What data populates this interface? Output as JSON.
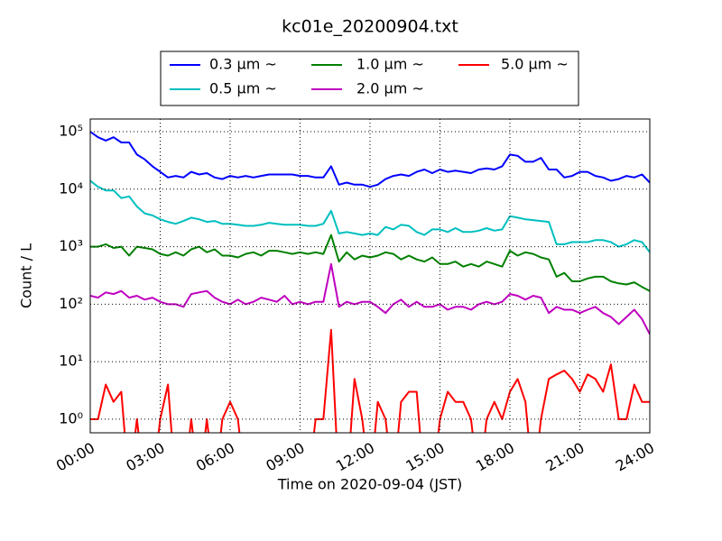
{
  "chart_data": {
    "type": "line",
    "title": "kc01e_20200904.txt",
    "x_label": "Time on 2020-09-04 (JST)",
    "y_label": "Count / L",
    "log_y": true,
    "grid": true,
    "legend": "top",
    "x": [
      "00:00",
      "00:20",
      "00:40",
      "01:00",
      "01:20",
      "01:40",
      "02:00",
      "02:20",
      "02:40",
      "03:00",
      "03:20",
      "03:40",
      "04:00",
      "04:20",
      "04:40",
      "05:00",
      "05:20",
      "05:40",
      "06:00",
      "06:20",
      "06:40",
      "07:00",
      "07:20",
      "07:40",
      "08:00",
      "08:20",
      "08:40",
      "09:00",
      "09:20",
      "09:40",
      "10:00",
      "10:20",
      "10:40",
      "11:00",
      "11:20",
      "11:40",
      "12:00",
      "12:20",
      "12:40",
      "13:00",
      "13:20",
      "13:40",
      "14:00",
      "14:20",
      "14:40",
      "15:00",
      "15:20",
      "15:40",
      "16:00",
      "16:20",
      "16:40",
      "17:00",
      "17:20",
      "17:40",
      "18:00",
      "18:20",
      "18:40",
      "19:00",
      "19:20",
      "19:40",
      "20:00",
      "20:20",
      "20:40",
      "21:00",
      "21:20",
      "21:40",
      "22:00",
      "22:20",
      "22:40",
      "23:00",
      "23:20",
      "23:40",
      "24:00"
    ],
    "xlim": [
      "00:00",
      "24:00"
    ],
    "xticks": [
      "00:00",
      "03:00",
      "06:00",
      "09:00",
      "12:00",
      "15:00",
      "18:00",
      "21:00",
      "24:00"
    ],
    "ylim": [
      0.58,
      166000
    ],
    "yticks": [
      {
        "value": 1,
        "label": "10⁰"
      },
      {
        "value": 10,
        "label": "10¹"
      },
      {
        "value": 100,
        "label": "10²"
      },
      {
        "value": 1000,
        "label": "10³"
      },
      {
        "value": 10000,
        "label": "10⁴"
      },
      {
        "value": 100000,
        "label": "10⁵"
      }
    ],
    "series": [
      {
        "name": "0.3 μm ~",
        "color": "#0000ff",
        "values": [
          100000,
          80000,
          70000,
          80000,
          65000,
          65000,
          40000,
          33000,
          25000,
          20000,
          16000,
          17000,
          16000,
          20000,
          18000,
          19000,
          16000,
          15000,
          17000,
          16000,
          17000,
          16000,
          17000,
          18000,
          18000,
          18000,
          18000,
          17000,
          17000,
          16000,
          16000,
          25000,
          12000,
          13000,
          12000,
          12000,
          11000,
          12000,
          15000,
          17000,
          18000,
          17000,
          20000,
          22000,
          19000,
          22000,
          20000,
          21000,
          20000,
          19000,
          22000,
          23000,
          22000,
          25000,
          40000,
          38000,
          30000,
          30000,
          35000,
          22000,
          22000,
          16000,
          17000,
          20000,
          20000,
          17000,
          16000,
          14000,
          15000,
          17000,
          16000,
          18000,
          13000
        ]
      },
      {
        "name": "0.5 μm ~",
        "color": "#00bfbf",
        "values": [
          14000,
          11000,
          9500,
          9500,
          7000,
          7500,
          5000,
          3800,
          3500,
          3000,
          2700,
          2500,
          2800,
          3200,
          3000,
          2700,
          2800,
          2500,
          2500,
          2400,
          2300,
          2300,
          2400,
          2600,
          2500,
          2400,
          2400,
          2400,
          2300,
          2300,
          2500,
          4200,
          1700,
          1800,
          1700,
          1600,
          1700,
          1600,
          2200,
          2000,
          2400,
          2300,
          1800,
          1600,
          2000,
          2000,
          1800,
          2100,
          1800,
          1800,
          1900,
          2100,
          1900,
          2000,
          3400,
          3200,
          3000,
          2900,
          2800,
          2700,
          1100,
          1100,
          1200,
          1200,
          1200,
          1300,
          1300,
          1200,
          1000,
          1100,
          1300,
          1200,
          800
        ]
      },
      {
        "name": "1.0 μm ~",
        "color": "#008000",
        "values": [
          1000,
          1000,
          1100,
          950,
          1000,
          700,
          1000,
          950,
          900,
          750,
          700,
          800,
          700,
          900,
          1000,
          800,
          900,
          700,
          700,
          650,
          750,
          800,
          700,
          850,
          850,
          800,
          750,
          800,
          750,
          800,
          750,
          1600,
          550,
          800,
          600,
          700,
          650,
          700,
          800,
          750,
          600,
          700,
          600,
          550,
          650,
          500,
          500,
          550,
          450,
          500,
          450,
          550,
          500,
          450,
          850,
          700,
          800,
          750,
          650,
          600,
          300,
          350,
          250,
          250,
          280,
          300,
          300,
          250,
          230,
          220,
          240,
          200,
          170
        ]
      },
      {
        "name": "2.0 μm ~",
        "color": "#bf00bf",
        "values": [
          140,
          130,
          160,
          150,
          170,
          130,
          140,
          120,
          130,
          110,
          100,
          100,
          90,
          150,
          160,
          170,
          130,
          110,
          100,
          120,
          100,
          110,
          130,
          120,
          110,
          140,
          100,
          110,
          100,
          110,
          110,
          500,
          90,
          110,
          100,
          110,
          110,
          90,
          70,
          100,
          120,
          90,
          110,
          90,
          90,
          100,
          80,
          90,
          90,
          80,
          100,
          110,
          100,
          110,
          150,
          140,
          120,
          140,
          130,
          70,
          90,
          80,
          80,
          70,
          80,
          90,
          70,
          60,
          45,
          60,
          80,
          55,
          30
        ]
      },
      {
        "name": "5.0 μm ~",
        "color": "#ff0000",
        "values": [
          1,
          1,
          4,
          2,
          3,
          0,
          1,
          0,
          0,
          1,
          4,
          0,
          0,
          1,
          0,
          1,
          0,
          1,
          2,
          1,
          0,
          0,
          0,
          0,
          0,
          0,
          0,
          0,
          0,
          1,
          1,
          36,
          0,
          0,
          5,
          1,
          0,
          2,
          1,
          0,
          2,
          3,
          3,
          0,
          0,
          1,
          3,
          2,
          2,
          1,
          0,
          1,
          2,
          1,
          3,
          5,
          2,
          0,
          1,
          5,
          6,
          7,
          5,
          3,
          6,
          5,
          3,
          9,
          1,
          1,
          4,
          2,
          2
        ]
      }
    ]
  }
}
